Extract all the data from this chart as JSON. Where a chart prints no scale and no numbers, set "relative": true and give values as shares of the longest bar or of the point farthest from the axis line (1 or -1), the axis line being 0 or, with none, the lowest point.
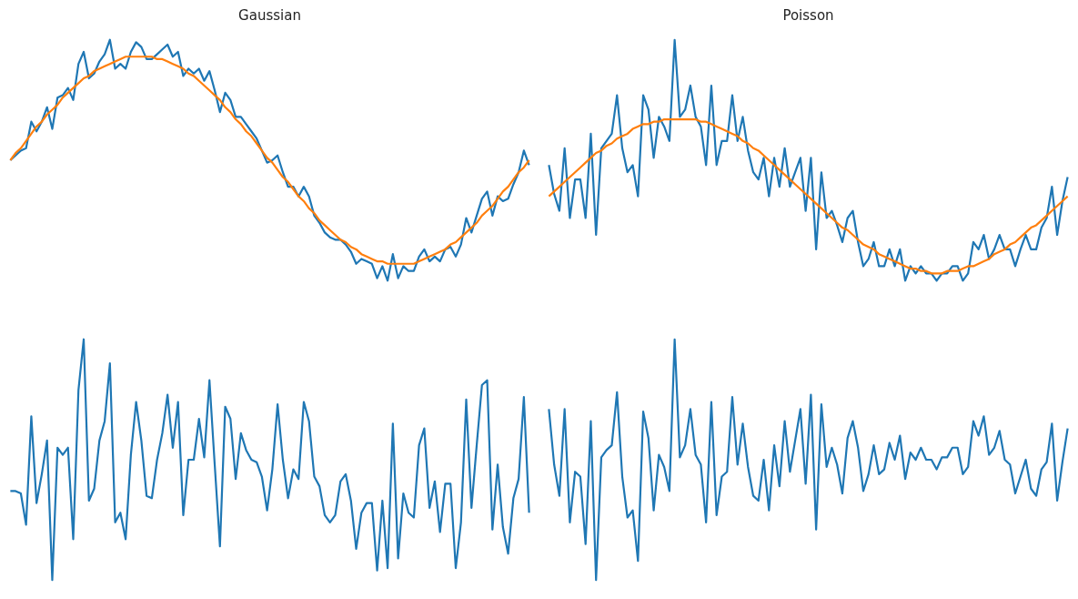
{
  "chart_data": [
    {
      "type": "line",
      "title": "Gaussian",
      "relative": true,
      "categories": [
        null,
        null,
        null,
        null,
        null,
        null,
        null,
        null,
        null,
        null,
        null,
        null,
        null,
        null,
        null,
        null,
        null,
        null,
        null,
        null,
        null,
        null,
        null,
        null,
        null,
        null,
        null,
        null,
        null,
        null,
        null,
        null,
        null,
        null,
        null,
        null,
        null,
        null,
        null,
        null,
        null,
        null,
        null,
        null,
        null,
        null,
        null,
        null,
        null,
        null,
        null,
        null,
        null,
        null,
        null,
        null,
        null,
        null,
        null,
        null,
        null,
        null,
        null,
        null,
        null,
        null,
        null,
        null,
        null,
        null,
        null,
        null,
        null,
        null,
        null,
        null,
        null,
        null,
        null,
        null,
        null,
        null,
        null,
        null,
        null,
        null,
        null,
        null,
        null,
        null,
        null,
        null,
        null,
        null,
        null,
        null,
        null,
        null,
        null,
        null
      ],
      "grid": false,
      "series": [
        {
          "color": "#1f77b4",
          "values": [
            0.5,
            0.52,
            0.54,
            0.55,
            0.66,
            0.62,
            0.66,
            0.72,
            0.63,
            0.76,
            0.77,
            0.8,
            0.75,
            0.9,
            0.95,
            0.84,
            0.86,
            0.91,
            0.94,
            1.0,
            0.88,
            0.9,
            0.88,
            0.95,
            0.99,
            0.97,
            0.92,
            0.92,
            0.94,
            0.96,
            0.98,
            0.93,
            0.95,
            0.85,
            0.88,
            0.86,
            0.88,
            0.83,
            0.87,
            0.79,
            0.7,
            0.78,
            0.75,
            0.68,
            0.68,
            0.65,
            0.62,
            0.59,
            0.54,
            0.49,
            0.5,
            0.52,
            0.45,
            0.39,
            0.39,
            0.35,
            0.39,
            0.35,
            0.27,
            0.24,
            0.2,
            0.18,
            0.17,
            0.17,
            0.15,
            0.12,
            0.07,
            0.09,
            0.08,
            0.07,
            0.01,
            0.06,
            0,
            0.11,
            0.01,
            0.06,
            0.04,
            0.04,
            0.1,
            0.13,
            0.08,
            0.1,
            0.08,
            0.13,
            0.14,
            0.1,
            0.15,
            0.26,
            0.2,
            0.27,
            0.34,
            0.37,
            0.27,
            0.35,
            0.33,
            0.34,
            0.4,
            0.45,
            0.54,
            0.48
          ]
        },
        {
          "color": "#ff7f0e",
          "values": [
            0.5,
            0.53,
            0.55,
            0.58,
            0.61,
            0.64,
            0.66,
            0.69,
            0.71,
            0.73,
            0.76,
            0.78,
            0.8,
            0.82,
            0.84,
            0.85,
            0.87,
            0.88,
            0.89,
            0.9,
            0.91,
            0.92,
            0.93,
            0.93,
            0.93,
            0.93,
            0.93,
            0.93,
            0.92,
            0.92,
            0.91,
            0.9,
            0.89,
            0.88,
            0.86,
            0.85,
            0.83,
            0.81,
            0.79,
            0.77,
            0.75,
            0.72,
            0.7,
            0.67,
            0.65,
            0.62,
            0.6,
            0.57,
            0.54,
            0.51,
            0.49,
            0.46,
            0.43,
            0.41,
            0.38,
            0.35,
            0.33,
            0.3,
            0.28,
            0.25,
            0.23,
            0.21,
            0.19,
            0.17,
            0.16,
            0.14,
            0.13,
            0.11,
            0.1,
            0.09,
            0.08,
            0.08,
            0.07,
            0.07,
            0.07,
            0.07,
            0.07,
            0.07,
            0.08,
            0.09,
            0.1,
            0.11,
            0.12,
            0.13,
            0.15,
            0.16,
            0.18,
            0.2,
            0.22,
            0.24,
            0.27,
            0.29,
            0.31,
            0.34,
            0.37,
            0.39,
            0.42,
            0.45,
            0.47,
            0.5
          ]
        }
      ]
    },
    {
      "type": "line",
      "title": "Poisson",
      "relative": true,
      "categories": [
        null,
        null,
        null,
        null,
        null,
        null,
        null,
        null,
        null,
        null,
        null,
        null,
        null,
        null,
        null,
        null,
        null,
        null,
        null,
        null,
        null,
        null,
        null,
        null,
        null,
        null,
        null,
        null,
        null,
        null,
        null,
        null,
        null,
        null,
        null,
        null,
        null,
        null,
        null,
        null,
        null,
        null,
        null,
        null,
        null,
        null,
        null,
        null,
        null,
        null,
        null,
        null,
        null,
        null,
        null,
        null,
        null,
        null,
        null,
        null,
        null,
        null,
        null,
        null,
        null,
        null,
        null,
        null,
        null,
        null,
        null,
        null,
        null,
        null,
        null,
        null,
        null,
        null,
        null,
        null,
        null,
        null,
        null,
        null,
        null,
        null,
        null,
        null,
        null,
        null,
        null,
        null,
        null,
        null,
        null,
        null,
        null,
        null,
        null,
        null
      ],
      "grid": false,
      "series": [
        {
          "color": "#1f77b4",
          "values": [
            0.48,
            0.36,
            0.29,
            0.55,
            0.26,
            0.42,
            0.42,
            0.26,
            0.61,
            0.19,
            0.55,
            0.58,
            0.61,
            0.77,
            0.55,
            0.45,
            0.48,
            0.35,
            0.77,
            0.71,
            0.51,
            0.68,
            0.64,
            0.58,
            1.0,
            0.68,
            0.71,
            0.81,
            0.68,
            0.64,
            0.48,
            0.81,
            0.48,
            0.58,
            0.58,
            0.77,
            0.58,
            0.68,
            0.54,
            0.45,
            0.42,
            0.51,
            0.35,
            0.51,
            0.39,
            0.55,
            0.39,
            0.45,
            0.51,
            0.29,
            0.51,
            0.13,
            0.45,
            0.26,
            0.29,
            0.23,
            0.16,
            0.26,
            0.29,
            0.16,
            0.06,
            0.09,
            0.16,
            0.06,
            0.06,
            0.13,
            0.06,
            0.13,
            0,
            0.06,
            0.03,
            0.06,
            0.03,
            0.03,
            0,
            0.03,
            0.03,
            0.06,
            0.06,
            0,
            0.03,
            0.16,
            0.13,
            0.19,
            0.09,
            0.13,
            0.19,
            0.13,
            0.13,
            0.06,
            0.13,
            0.19,
            0.13,
            0.13,
            0.22,
            0.26,
            0.39,
            0.19,
            0.33,
            0.43
          ]
        },
        {
          "color": "#ff7f0e",
          "values": [
            0.35,
            0.37,
            0.39,
            0.41,
            0.43,
            0.45,
            0.47,
            0.49,
            0.51,
            0.53,
            0.54,
            0.56,
            0.57,
            0.59,
            0.6,
            0.61,
            0.63,
            0.64,
            0.65,
            0.65,
            0.66,
            0.66,
            0.67,
            0.67,
            0.67,
            0.67,
            0.67,
            0.67,
            0.67,
            0.66,
            0.66,
            0.65,
            0.64,
            0.63,
            0.62,
            0.61,
            0.6,
            0.58,
            0.57,
            0.55,
            0.54,
            0.52,
            0.5,
            0.48,
            0.46,
            0.44,
            0.42,
            0.4,
            0.38,
            0.36,
            0.34,
            0.32,
            0.3,
            0.28,
            0.26,
            0.24,
            0.22,
            0.21,
            0.19,
            0.17,
            0.15,
            0.14,
            0.13,
            0.11,
            0.1,
            0.09,
            0.08,
            0.07,
            0.06,
            0.05,
            0.05,
            0.04,
            0.04,
            0.03,
            0.03,
            0.03,
            0.04,
            0.04,
            0.04,
            0.05,
            0.06,
            0.06,
            0.07,
            0.08,
            0.09,
            0.11,
            0.12,
            0.13,
            0.15,
            0.16,
            0.18,
            0.2,
            0.22,
            0.23,
            0.25,
            0.27,
            0.29,
            0.31,
            0.33,
            0.35
          ]
        }
      ]
    },
    {
      "type": "line",
      "relative": true,
      "categories": [
        null,
        null,
        null,
        null,
        null,
        null,
        null,
        null,
        null,
        null,
        null,
        null,
        null,
        null,
        null,
        null,
        null,
        null,
        null,
        null,
        null,
        null,
        null,
        null,
        null,
        null,
        null,
        null,
        null,
        null,
        null,
        null,
        null,
        null,
        null,
        null,
        null,
        null,
        null,
        null,
        null,
        null,
        null,
        null,
        null,
        null,
        null,
        null,
        null,
        null,
        null,
        null,
        null,
        null,
        null,
        null,
        null,
        null,
        null,
        null,
        null,
        null,
        null,
        null,
        null,
        null,
        null,
        null,
        null,
        null,
        null,
        null,
        null,
        null,
        null,
        null,
        null,
        null,
        null,
        null,
        null,
        null,
        null,
        null,
        null,
        null,
        null,
        null,
        null,
        null,
        null,
        null,
        null,
        null,
        null,
        null,
        null,
        null,
        null,
        null
      ],
      "grid": false,
      "series": [
        {
          "color": "#1f77b4",
          "values": [
            0.37,
            0.37,
            0.36,
            0.23,
            0.68,
            0.32,
            0.44,
            0.58,
            0,
            0.55,
            0.52,
            0.55,
            0.17,
            0.79,
            1.0,
            0.33,
            0.38,
            0.58,
            0.66,
            0.9,
            0.24,
            0.28,
            0.17,
            0.52,
            0.74,
            0.58,
            0.35,
            0.34,
            0.5,
            0.61,
            0.77,
            0.55,
            0.74,
            0.27,
            0.5,
            0.5,
            0.67,
            0.51,
            0.83,
            0.48,
            0.14,
            0.72,
            0.67,
            0.42,
            0.61,
            0.54,
            0.5,
            0.49,
            0.43,
            0.29,
            0.46,
            0.73,
            0.5,
            0.34,
            0.46,
            0.42,
            0.74,
            0.66,
            0.43,
            0.39,
            0.27,
            0.24,
            0.27,
            0.41,
            0.44,
            0.33,
            0.13,
            0.28,
            0.32,
            0.32,
            0.04,
            0.33,
            0.05,
            0.65,
            0.09,
            0.36,
            0.28,
            0.26,
            0.56,
            0.63,
            0.3,
            0.41,
            0.2,
            0.4,
            0.4,
            0.05,
            0.24,
            0.75,
            0.3,
            0.56,
            0.81,
            0.83,
            0.21,
            0.48,
            0.22,
            0.11,
            0.34,
            0.42,
            0.76,
            0.28
          ]
        }
      ]
    },
    {
      "type": "line",
      "relative": true,
      "categories": [
        null,
        null,
        null,
        null,
        null,
        null,
        null,
        null,
        null,
        null,
        null,
        null,
        null,
        null,
        null,
        null,
        null,
        null,
        null,
        null,
        null,
        null,
        null,
        null,
        null,
        null,
        null,
        null,
        null,
        null,
        null,
        null,
        null,
        null,
        null,
        null,
        null,
        null,
        null,
        null,
        null,
        null,
        null,
        null,
        null,
        null,
        null,
        null,
        null,
        null,
        null,
        null,
        null,
        null,
        null,
        null,
        null,
        null,
        null,
        null,
        null,
        null,
        null,
        null,
        null,
        null,
        null,
        null,
        null,
        null,
        null,
        null,
        null,
        null,
        null,
        null,
        null,
        null,
        null,
        null,
        null,
        null,
        null,
        null,
        null,
        null,
        null,
        null,
        null,
        null,
        null,
        null,
        null,
        null,
        null,
        null,
        null,
        null,
        null,
        null
      ],
      "grid": false,
      "series": [
        {
          "color": "#1f77b4",
          "values": [
            0.71,
            0.48,
            0.35,
            0.71,
            0.24,
            0.45,
            0.43,
            0.15,
            0.66,
            0,
            0.51,
            0.54,
            0.56,
            0.78,
            0.43,
            0.26,
            0.29,
            0.08,
            0.7,
            0.59,
            0.29,
            0.52,
            0.47,
            0.37,
            1.0,
            0.51,
            0.56,
            0.71,
            0.52,
            0.48,
            0.24,
            0.74,
            0.27,
            0.43,
            0.45,
            0.76,
            0.48,
            0.65,
            0.47,
            0.35,
            0.33,
            0.5,
            0.29,
            0.56,
            0.39,
            0.66,
            0.45,
            0.58,
            0.71,
            0.4,
            0.77,
            0.21,
            0.73,
            0.47,
            0.55,
            0.48,
            0.36,
            0.59,
            0.66,
            0.55,
            0.37,
            0.44,
            0.56,
            0.44,
            0.46,
            0.57,
            0.5,
            0.6,
            0.42,
            0.53,
            0.5,
            0.55,
            0.5,
            0.5,
            0.46,
            0.51,
            0.51,
            0.55,
            0.55,
            0.44,
            0.47,
            0.66,
            0.6,
            0.68,
            0.52,
            0.55,
            0.62,
            0.5,
            0.48,
            0.36,
            0.43,
            0.5,
            0.38,
            0.35,
            0.46,
            0.49,
            0.65,
            0.33,
            0.49,
            0.63
          ]
        }
      ]
    }
  ]
}
